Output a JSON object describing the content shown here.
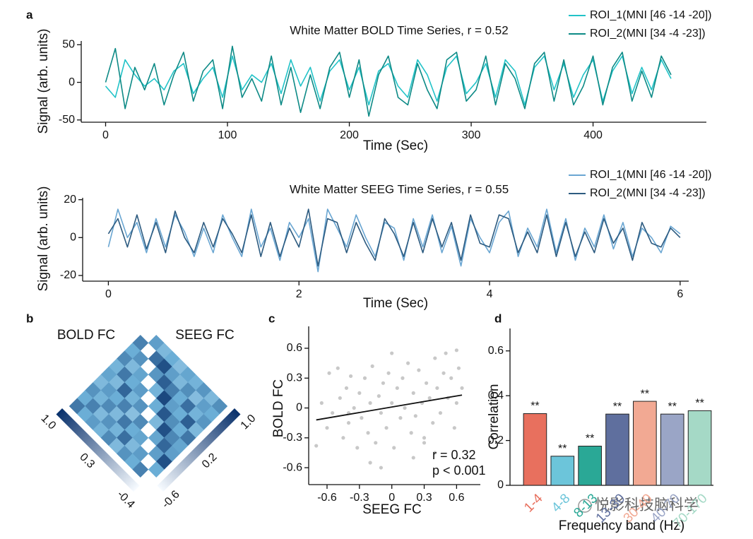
{
  "panel_labels": [
    "a",
    "b",
    "c",
    "d"
  ],
  "watermark": "悦影科技脑科学",
  "chart_data": [
    {
      "type": "line",
      "title": "White Matter BOLD Time Series, r = 0.52",
      "xlabel": "Time (Sec)",
      "ylabel": "Signal (arb. units)",
      "x": [
        0,
        8,
        16,
        24,
        32,
        40,
        48,
        56,
        64,
        72,
        80,
        88,
        96,
        104,
        112,
        120,
        128,
        136,
        144,
        152,
        160,
        168,
        176,
        184,
        192,
        200,
        208,
        216,
        224,
        232,
        240,
        248,
        256,
        264,
        272,
        280,
        288,
        296,
        304,
        312,
        320,
        328,
        336,
        344,
        352,
        360,
        368,
        376,
        384,
        392,
        400,
        408,
        416,
        424,
        432,
        440,
        448,
        456,
        464
      ],
      "series": [
        {
          "name": "ROI_1(MNI [46 -14 -20])",
          "color": "#22c3c8",
          "values": [
            -5,
            -20,
            30,
            10,
            -5,
            5,
            -10,
            15,
            25,
            -15,
            5,
            20,
            -20,
            35,
            -10,
            10,
            0,
            25,
            -15,
            30,
            -5,
            20,
            -25,
            15,
            30,
            -10,
            20,
            -30,
            15,
            25,
            -5,
            -20,
            30,
            10,
            -25,
            20,
            35,
            -15,
            0,
            25,
            -20,
            30,
            15,
            -30,
            20,
            35,
            -10,
            25,
            -20,
            10,
            30,
            -25,
            15,
            35,
            -15,
            20,
            -10,
            30,
            5
          ]
        },
        {
          "name": "ROI_2(MNI [34 -4 -23])",
          "color": "#0d8a86",
          "values": [
            0,
            45,
            -35,
            20,
            -10,
            25,
            -30,
            10,
            40,
            -25,
            15,
            30,
            -35,
            48,
            -20,
            5,
            -25,
            35,
            -30,
            20,
            -40,
            10,
            -35,
            20,
            40,
            -20,
            30,
            -45,
            10,
            35,
            -20,
            -30,
            25,
            -10,
            -35,
            30,
            40,
            -25,
            -10,
            35,
            -30,
            25,
            5,
            -35,
            25,
            40,
            -25,
            30,
            -30,
            -5,
            35,
            -30,
            20,
            40,
            -25,
            15,
            -20,
            35,
            10
          ]
        }
      ],
      "xlim": [
        -20,
        493
      ],
      "ylim": [
        -53,
        55
      ],
      "xticks": [
        0,
        100,
        200,
        300,
        400
      ],
      "yticks": [
        -50,
        0,
        50
      ]
    },
    {
      "type": "line",
      "title": "White Matter SEEG Time Series, r = 0.55",
      "xlabel": "Time (Sec)",
      "ylabel": "Signal (arb. units)",
      "x": [
        0,
        0.1,
        0.2,
        0.3,
        0.4,
        0.5,
        0.6,
        0.7,
        0.8,
        0.9,
        1,
        1.1,
        1.2,
        1.3,
        1.4,
        1.5,
        1.6,
        1.7,
        1.8,
        1.9,
        2,
        2.1,
        2.2,
        2.3,
        2.4,
        2.5,
        2.6,
        2.7,
        2.8,
        2.9,
        3,
        3.1,
        3.2,
        3.3,
        3.4,
        3.5,
        3.6,
        3.7,
        3.8,
        3.9,
        4,
        4.1,
        4.2,
        4.3,
        4.4,
        4.5,
        4.6,
        4.7,
        4.8,
        4.9,
        5,
        5.1,
        5.2,
        5.3,
        5.4,
        5.5,
        5.6,
        5.7,
        5.8,
        5.9,
        6
      ],
      "series": [
        {
          "name": "ROI_1(MNI [46 -14 -20])",
          "color": "#6aa6d2",
          "values": [
            -5,
            15,
            0,
            8,
            -8,
            10,
            -5,
            12,
            3,
            -10,
            5,
            -8,
            12,
            0,
            -10,
            15,
            -5,
            5,
            -12,
            8,
            0,
            10,
            -18,
            15,
            5,
            -5,
            12,
            0,
            -10,
            8,
            5,
            -12,
            10,
            -5,
            12,
            -8,
            6,
            -15,
            10,
            0,
            -8,
            8,
            14,
            -10,
            5,
            -5,
            15,
            -8,
            10,
            -12,
            5,
            -5,
            12,
            -6,
            8,
            -10,
            5,
            0,
            -8,
            6,
            2
          ]
        },
        {
          "name": "ROI_2(MNI [34 -4 -23])",
          "color": "#2d5b80",
          "values": [
            2,
            10,
            -5,
            12,
            -6,
            8,
            -8,
            14,
            0,
            -8,
            8,
            -5,
            10,
            2,
            -8,
            12,
            -10,
            8,
            -10,
            5,
            -5,
            15,
            -15,
            10,
            8,
            -8,
            8,
            -3,
            -12,
            10,
            2,
            -10,
            8,
            -8,
            10,
            -5,
            8,
            -12,
            12,
            -3,
            -5,
            12,
            10,
            -8,
            3,
            -8,
            12,
            -10,
            8,
            -10,
            3,
            -8,
            10,
            -3,
            5,
            -12,
            8,
            -3,
            -5,
            5,
            0
          ]
        }
      ],
      "xlim": [
        -0.27,
        6.09
      ],
      "ylim": [
        -23,
        21
      ],
      "xticks": [
        0,
        2,
        4,
        6
      ],
      "yticks": [
        -20,
        0,
        20
      ]
    },
    {
      "type": "heatmap",
      "series": [
        {
          "name": "BOLD FC",
          "clim": [
            -0.4,
            1.0
          ],
          "cticks": [
            {
              "value": 1,
              "label": "1.0"
            },
            0.3,
            -0.4
          ],
          "rows": [
            [
              0.55
            ],
            [
              0.3,
              0.45
            ],
            [
              0.5,
              0.2,
              0.35
            ],
            [
              0.25,
              0.6,
              0.3,
              0.4
            ],
            [
              0.35,
              0.2,
              0.7,
              0.25,
              0.45
            ],
            [
              0.2,
              0.4,
              0.3,
              0.55,
              0.15,
              0.5
            ],
            [
              0.45,
              0.25,
              0.5,
              0.2,
              0.6,
              0.3,
              0.35
            ],
            [
              0.3,
              0.55,
              0.2,
              0.45,
              0.25,
              0.65,
              0.2,
              0.4
            ],
            [
              0.6,
              0.3,
              0.4,
              0.25,
              0.5,
              0.2,
              0.45,
              0.3,
              0.55
            ]
          ]
        },
        {
          "name": "SEEG FC",
          "clim": [
            -0.6,
            1.0
          ],
          "cticks": [
            {
              "value": 1,
              "label": "1.0"
            },
            0.2,
            -0.6
          ],
          "rows": [
            [
              0.3
            ],
            [
              0.1,
              0.6
            ],
            [
              0.2,
              0.8,
              0.35
            ],
            [
              0.05,
              0.3,
              0.7,
              0.15
            ],
            [
              0.25,
              0.1,
              0.5,
              0.85,
              0.2
            ],
            [
              0.15,
              0.4,
              0.2,
              0.3,
              0.75,
              0.1
            ],
            [
              0.35,
              0.05,
              0.6,
              0.2,
              0.4,
              0.8,
              0.25
            ],
            [
              0.1,
              0.3,
              0.15,
              0.7,
              0.2,
              0.45,
              0.65,
              0.3
            ],
            [
              0.4,
              0.2,
              0.35,
              0.1,
              0.55,
              0.25,
              0.3,
              0.8,
              0.2
            ]
          ]
        }
      ]
    },
    {
      "type": "scatter",
      "xlabel": "SEEG FC",
      "ylabel": "BOLD FC",
      "color": "#c8c8c8",
      "x": [
        -0.7,
        -0.65,
        -0.6,
        -0.58,
        -0.55,
        -0.5,
        -0.48,
        -0.45,
        -0.42,
        -0.4,
        -0.38,
        -0.35,
        -0.32,
        -0.3,
        -0.28,
        -0.25,
        -0.22,
        -0.2,
        -0.18,
        -0.15,
        -0.12,
        -0.1,
        -0.08,
        -0.05,
        -0.03,
        0,
        0.02,
        0.05,
        0.08,
        0.1,
        0.12,
        0.15,
        0.18,
        0.2,
        0.22,
        0.25,
        0.28,
        0.3,
        0.32,
        0.35,
        0.38,
        0.4,
        0.42,
        0.45,
        0.48,
        0.5,
        0.52,
        0.55,
        0.58,
        0.6,
        0.62,
        0.65,
        -0.4,
        -0.2,
        0,
        0.2,
        0.4,
        0.6,
        -0.1,
        0.3
      ],
      "y": [
        -0.38,
        0.05,
        -0.2,
        0.35,
        -0.05,
        0.4,
        0.1,
        -0.3,
        0.2,
        -0.15,
        0.32,
        0,
        -0.4,
        0.15,
        -0.1,
        0.3,
        -0.25,
        0.05,
        0.42,
        -0.35,
        0.12,
        -0.05,
        0.25,
        -0.2,
        0.35,
        0.05,
        -0.4,
        0.2,
        -0.1,
        0.3,
        0,
        0.45,
        -0.25,
        0.15,
        -0.08,
        0.38,
        0.05,
        -0.3,
        0.25,
        0.1,
        -0.15,
        0.5,
        0.2,
        -0.05,
        0.35,
        0.55,
        0.1,
        0.3,
        -0.2,
        0.58,
        0.4,
        0.2,
        -0.05,
        -0.55,
        0.55,
        -0.5,
        -0.45,
        0.05,
        -0.6,
        -0.35
      ],
      "fit": {
        "x": [
          -0.7,
          0.65
        ],
        "y": [
          -0.12,
          0.13
        ]
      },
      "annotations": [
        "r = 0.32",
        "p < 0.001"
      ],
      "xlim": [
        -0.77,
        0.82
      ],
      "ylim": [
        -0.77,
        0.82
      ],
      "xticks": [
        -0.6,
        -0.3,
        0,
        0.3,
        0.6
      ],
      "yticks": [
        -0.6,
        -0.3,
        0,
        0.3,
        0.6
      ]
    },
    {
      "type": "bar",
      "xlabel": "Frequency band (Hz)",
      "ylabel": "Correlation",
      "categories": [
        "1-4",
        "4-8",
        "8-13",
        "13-30",
        "30-40",
        "40-70",
        "70-170"
      ],
      "values": [
        0.32,
        0.13,
        0.175,
        0.318,
        0.375,
        0.318,
        0.333
      ],
      "significance": [
        "**",
        "**",
        "**",
        "**",
        "**",
        "**",
        "**"
      ],
      "colors": [
        "#e8705e",
        "#6cc5da",
        "#2aa896",
        "#5f6f9e",
        "#f2a993",
        "#9aa5c6",
        "#a5d9c6"
      ],
      "ylim": [
        0,
        0.7
      ],
      "yticks": [
        0,
        0.2,
        0.4,
        0.6
      ]
    }
  ]
}
